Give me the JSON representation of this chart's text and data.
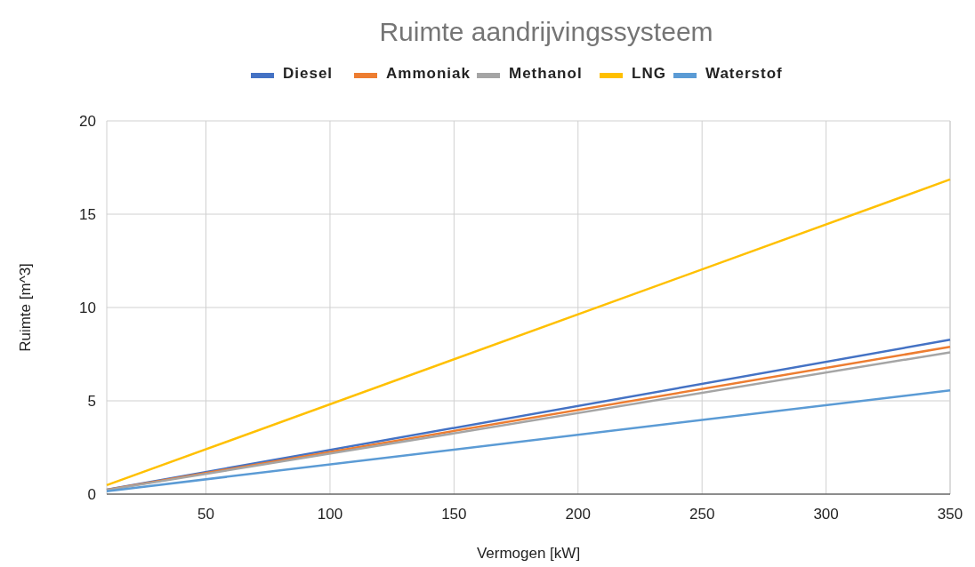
{
  "chart_data": {
    "type": "line",
    "title": "Ruimte aandrijvingssysteem",
    "xlabel": "Vermogen [kW]",
    "ylabel": "Ruimte [m^3]",
    "x": [
      10,
      350
    ],
    "xlim": [
      10,
      350
    ],
    "xticks": [
      50,
      100,
      150,
      200,
      250,
      300,
      350
    ],
    "ylim": [
      0,
      20
    ],
    "yticks": [
      0,
      5,
      10,
      15,
      20
    ],
    "grid": true,
    "legend": "top",
    "marker": "none",
    "line_style": "solid",
    "series": [
      {
        "name": "Diesel",
        "color": "#4472c4",
        "values": [
          0.24,
          8.27
        ]
      },
      {
        "name": "Ammoniak",
        "color": "#ed7d31",
        "values": [
          0.23,
          7.89
        ]
      },
      {
        "name": "Methanol",
        "color": "#a5a5a5",
        "values": [
          0.22,
          7.6
        ]
      },
      {
        "name": "LNG",
        "color": "#ffc000",
        "values": [
          0.48,
          16.86
        ]
      },
      {
        "name": "Waterstof",
        "color": "#5b9bd5",
        "values": [
          0.16,
          5.56
        ]
      }
    ]
  }
}
